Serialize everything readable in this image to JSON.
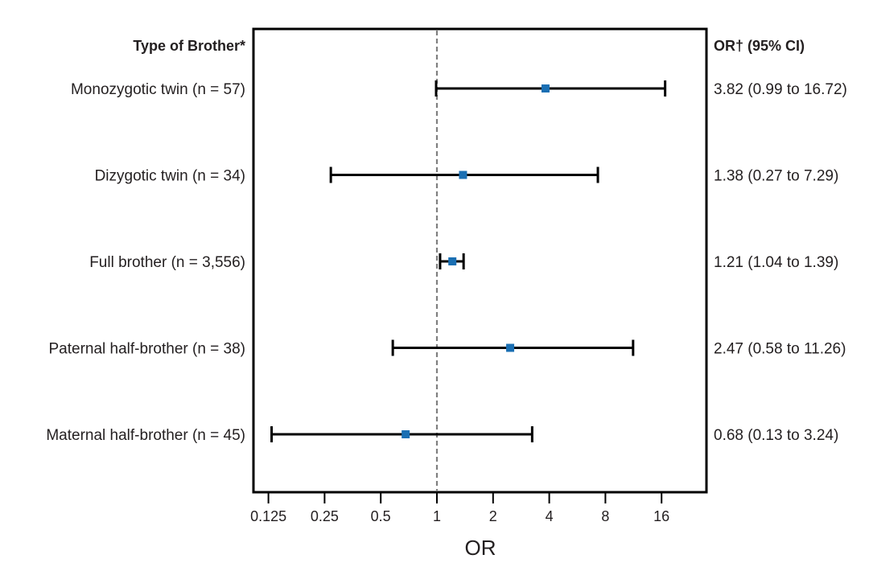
{
  "chart_data": {
    "type": "forest",
    "left_header": "Type of Brother*",
    "right_header": "OR† (95% CI)",
    "xlabel": "OR",
    "x_scale": "log2",
    "xlim": [
      0.11,
      22
    ],
    "x_ticks": [
      0.125,
      0.25,
      0.5,
      1,
      2,
      4,
      8,
      16
    ],
    "x_tick_labels": [
      "0.125",
      "0.25",
      "0.5",
      "1",
      "2",
      "4",
      "8",
      "16"
    ],
    "reference_line": 1,
    "colors": {
      "point": "#1a6fb3",
      "ci": "#000000",
      "reference": "#808080"
    },
    "rows": [
      {
        "label": "Monozygotic twin (n = 57)",
        "or": 3.82,
        "lower": 0.99,
        "upper": 16.72,
        "text": "3.82 (0.99 to 16.72)"
      },
      {
        "label": "Dizygotic twin (n = 34)",
        "or": 1.38,
        "lower": 0.27,
        "upper": 7.29,
        "text": "1.38 (0.27 to 7.29)"
      },
      {
        "label": "Full brother (n = 3,556)",
        "or": 1.21,
        "lower": 1.04,
        "upper": 1.39,
        "text": "1.21 (1.04 to 1.39)"
      },
      {
        "label": "Paternal half-brother (n = 38)",
        "or": 2.47,
        "lower": 0.58,
        "upper": 11.26,
        "text": "2.47 (0.58 to 11.26)"
      },
      {
        "label": "Maternal half-brother (n = 45)",
        "or": 0.68,
        "lower": 0.13,
        "upper": 3.24,
        "text": "0.68 (0.13 to 3.24)"
      }
    ]
  }
}
